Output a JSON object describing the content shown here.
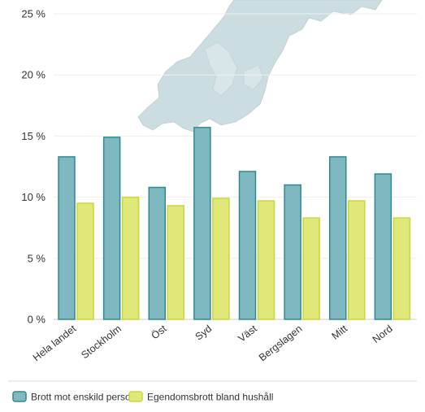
{
  "chart_data": {
    "type": "bar",
    "categories": [
      "Hela landet",
      "Stockholm",
      "Öst",
      "Syd",
      "Väst",
      "Bergslagen",
      "Mitt",
      "Nord"
    ],
    "series": [
      {
        "name": "Brott mot enskild person",
        "values": [
          13.3,
          14.9,
          10.8,
          15.7,
          12.1,
          11.0,
          13.3,
          11.9
        ],
        "color": "#7fb8c0",
        "stroke": "#2f8a8e"
      },
      {
        "name": "Egendomsbrott bland hushåll",
        "values": [
          9.5,
          10.0,
          9.3,
          9.9,
          9.7,
          8.3,
          9.7,
          8.3
        ],
        "color": "#e0e87a",
        "stroke": "#cbd63a"
      }
    ],
    "y_ticks": [
      "0 %",
      "5 %",
      "10 %",
      "15 %",
      "20 %",
      "25 %"
    ],
    "ylim": [
      0,
      25
    ],
    "grid": true,
    "legend_position": "bottom-left",
    "background_map": "sweden-map-silhouette"
  }
}
